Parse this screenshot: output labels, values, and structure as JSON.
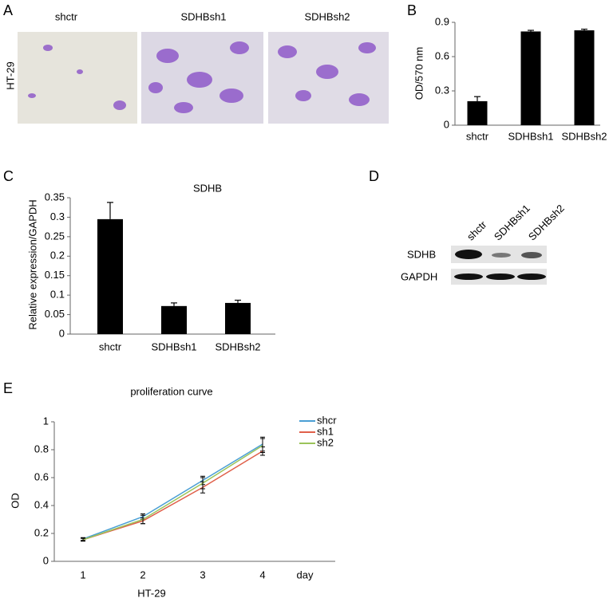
{
  "panel_labels": [
    "A",
    "B",
    "C",
    "D",
    "E"
  ],
  "panel_a": {
    "cell_line": "HT-29",
    "conditions": [
      "shctr",
      "SDHBsh1",
      "SDHBsh2"
    ]
  },
  "panel_d": {
    "lanes": [
      "shctr",
      "SDHBsh1",
      "SDHBsh2"
    ],
    "rows": [
      "SDHB",
      "GAPDH"
    ]
  },
  "chart_data": [
    {
      "type": "bar",
      "ylabel": "OD/570 nm",
      "categories": [
        "shctr",
        "SDHBsh1",
        "SDHBsh2"
      ],
      "values": [
        0.21,
        0.82,
        0.83
      ],
      "errors": [
        0.04,
        0.01,
        0.01
      ],
      "color": "#000000",
      "ylim": [
        0,
        0.9
      ],
      "yticks": [
        0,
        0.3,
        0.6,
        0.9
      ]
    },
    {
      "type": "bar",
      "title": "SDHB",
      "ylabel": "Relative expression/GAPDH",
      "categories": [
        "shctr",
        "SDHBsh1",
        "SDHBsh2"
      ],
      "values": [
        0.295,
        0.072,
        0.08
      ],
      "errors": [
        0.043,
        0.008,
        0.007
      ],
      "color": "#000000",
      "ylim": [
        0,
        0.35
      ],
      "yticks": [
        0,
        0.05,
        0.1,
        0.15,
        0.2,
        0.25,
        0.3,
        0.35
      ]
    },
    {
      "type": "line",
      "title": "proliferation curve",
      "xlabel": "day",
      "ylabel": "OD",
      "note": "HT-29",
      "categories": [
        "1",
        "2",
        "3",
        "4"
      ],
      "series": [
        {
          "name": "shcr",
          "color": "#4a9fd4",
          "values": [
            0.16,
            0.32,
            0.58,
            0.84
          ],
          "errors": [
            0.01,
            0.02,
            0.03,
            0.05
          ]
        },
        {
          "name": "sh1",
          "color": "#e0604a",
          "values": [
            0.155,
            0.29,
            0.53,
            0.79
          ],
          "errors": [
            0.01,
            0.02,
            0.04,
            0.03
          ]
        },
        {
          "name": "sh2",
          "color": "#9bc45a",
          "values": [
            0.155,
            0.3,
            0.56,
            0.83
          ],
          "errors": [
            0.01,
            0.03,
            0.04,
            0.05
          ]
        }
      ],
      "ylim": [
        0,
        1
      ],
      "yticks": [
        0,
        0.2,
        0.4,
        0.6,
        0.8,
        1
      ]
    }
  ]
}
